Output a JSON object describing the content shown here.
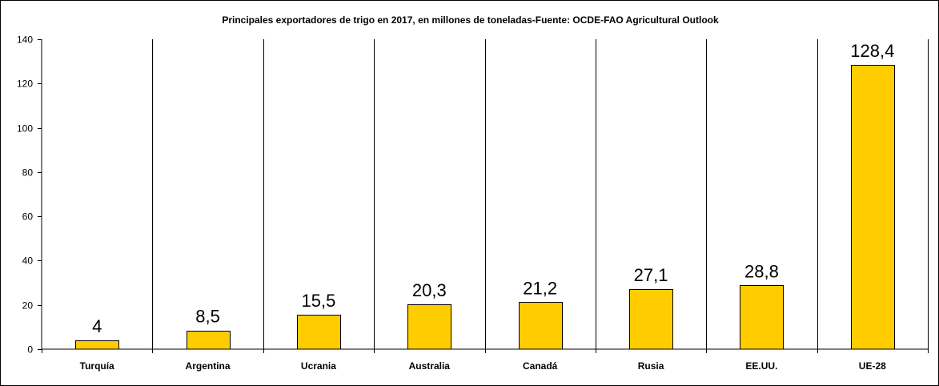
{
  "colors": {
    "bar_fill": "#FFCC00",
    "bar_stroke": "#000000",
    "axis": "#000000",
    "background": "#FFFFFF"
  },
  "chart_data": {
    "type": "bar",
    "title": "Principales exportadores de trigo en 2017, en millones de toneladas-Fuente: OCDE-FAO Agricultural Outlook",
    "xlabel": "",
    "ylabel": "",
    "categories": [
      "Turquía",
      "Argentina",
      "Ucrania",
      "Australia",
      "Canadá",
      "Rusia",
      "EE.UU.",
      "UE-28"
    ],
    "values": [
      4,
      8.5,
      15.5,
      20.3,
      21.2,
      27.1,
      28.8,
      128.4
    ],
    "data_labels": [
      "4",
      "8,5",
      "15,5",
      "20,3",
      "21,2",
      "27,1",
      "28,8",
      "128,4"
    ],
    "ylim": [
      0,
      140
    ],
    "yticks": [
      0,
      20,
      40,
      60,
      80,
      100,
      120,
      140
    ],
    "grid": false,
    "category_separators": true,
    "legend": "none"
  }
}
